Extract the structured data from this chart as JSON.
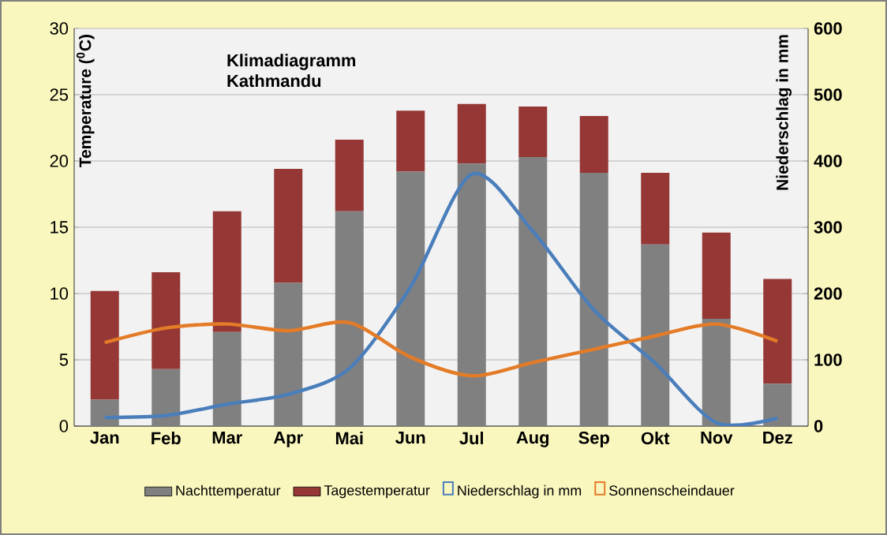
{
  "chart_data": {
    "type": "bar",
    "title": "Klimadiagramm",
    "subtitle": "Kathmandu",
    "ylabel": "Temperature ($^{0}$C)",
    "y2label": "Niederschlag in mm",
    "categories": [
      "Jan",
      "Feb",
      "Mar",
      "Apr",
      "Mai",
      "Jun",
      "Jul",
      "Aug",
      "Sep",
      "Okt",
      "Nov",
      "Dez"
    ],
    "stacked": true,
    "series": [
      {
        "name": "Nachttemperatur",
        "color": "#808080",
        "values": [
          2.0,
          4.3,
          7.1,
          10.8,
          16.2,
          19.2,
          19.8,
          20.3,
          19.1,
          13.7,
          8.1,
          3.2
        ]
      },
      {
        "name": "Tagestemperatur",
        "color": "#953735",
        "values": [
          8.2,
          7.3,
          9.1,
          8.6,
          5.4,
          4.6,
          4.5,
          3.8,
          4.3,
          5.4,
          6.5,
          7.9
        ]
      },
      {
        "name": "Niederschlag in mm",
        "type": "line",
        "axis": "y2",
        "color": "#4a7ebb",
        "values": [
          13,
          16,
          33,
          48,
          87,
          210,
          380,
          294,
          175,
          95,
          5,
          12
        ]
      },
      {
        "name": "Sonnenscheindauer",
        "type": "line",
        "color": "#e47b27",
        "values": [
          6.3,
          7.4,
          7.7,
          7.2,
          7.8,
          5.2,
          3.8,
          4.8,
          5.8,
          6.8,
          7.7,
          6.4
        ]
      }
    ],
    "ylim": [
      0,
      30
    ],
    "yticks": [
      0,
      5,
      10,
      15,
      20,
      25,
      30
    ],
    "y2lim": [
      0,
      600
    ],
    "y2ticks": [
      0,
      100,
      200,
      300,
      400,
      500,
      600
    ],
    "grid": "y",
    "legend": "bottom",
    "marker": "none",
    "line_style": "solid"
  }
}
